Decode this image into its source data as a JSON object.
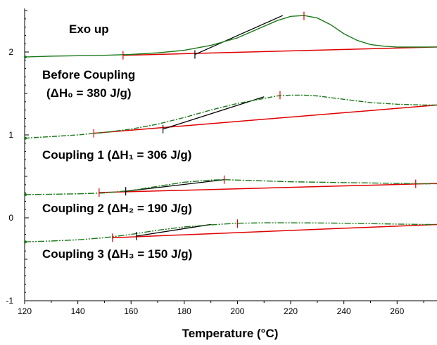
{
  "chart_data": {
    "type": "line",
    "title": "",
    "xlabel": "Temperature (°C)",
    "ylabel": "",
    "xlim": [
      120,
      275
    ],
    "ylim": [
      -1,
      2.5
    ],
    "x_ticks": [
      "120",
      "140",
      "160",
      "180",
      "200",
      "220",
      "240",
      "260"
    ],
    "y_ticks": [
      "-1",
      "0",
      "1",
      "2"
    ],
    "annotations": {
      "exo": "Exo up",
      "before_title": "Before Coupling",
      "before_dh": "(ΔH₀ = 380 J/g)",
      "c1": "Coupling 1 (ΔH₁ = 306 J/g)",
      "c2": "Coupling 2 (ΔH₂ = 190 J/g)",
      "c3": "Coupling 3 (ΔH₃ = 150 J/g)"
    },
    "colors": {
      "curve": "#1a7a1a",
      "baseline": "#e00000",
      "tangent": "#000000"
    },
    "series": [
      {
        "x": [
          120,
          130,
          140,
          150,
          160,
          170,
          180,
          190,
          200,
          210,
          215,
          220,
          225,
          230,
          235,
          240,
          245,
          250,
          255,
          260,
          265,
          270,
          275
        ],
        "y": [
          1.94,
          1.95,
          1.955,
          1.96,
          1.97,
          1.99,
          2.02,
          2.08,
          2.17,
          2.31,
          2.38,
          2.43,
          2.44,
          2.41,
          2.33,
          2.22,
          2.14,
          2.09,
          2.07,
          2.06,
          2.06,
          2.06,
          2.06
        ],
        "baseline": {
          "x": [
            157,
            275
          ],
          "y": [
            1.96,
            2.06
          ]
        },
        "tangent": {
          "x": [
            184,
            217
          ],
          "y": [
            1.97,
            2.44
          ]
        },
        "markers": {
          "red_x": [
            157,
            225
          ],
          "red_y": [
            1.96,
            2.435
          ],
          "black_x": [
            184
          ],
          "black_y": [
            1.97
          ]
        }
      },
      {
        "x": [
          120,
          125,
          130,
          140,
          150,
          160,
          170,
          180,
          190,
          200,
          210,
          215,
          220,
          225,
          230,
          240,
          250,
          260,
          270,
          275
        ],
        "y": [
          0.96,
          0.97,
          0.98,
          1.0,
          1.03,
          1.07,
          1.13,
          1.21,
          1.3,
          1.38,
          1.44,
          1.47,
          1.48,
          1.48,
          1.47,
          1.43,
          1.39,
          1.37,
          1.36,
          1.36
        ],
        "baseline": {
          "x": [
            146,
            275
          ],
          "y": [
            1.02,
            1.36
          ]
        },
        "tangent": {
          "x": [
            172,
            210
          ],
          "y": [
            1.07,
            1.46
          ]
        },
        "markers": {
          "red_x": [
            146,
            216
          ],
          "red_y": [
            1.02,
            1.48
          ],
          "black_x": [
            172
          ],
          "black_y": [
            1.07
          ]
        }
      },
      {
        "x": [
          120,
          130,
          140,
          150,
          160,
          170,
          180,
          190,
          195,
          200,
          210,
          220,
          230,
          240,
          250,
          260,
          270,
          275
        ],
        "y": [
          0.28,
          0.285,
          0.29,
          0.3,
          0.33,
          0.38,
          0.43,
          0.455,
          0.46,
          0.455,
          0.445,
          0.435,
          0.43,
          0.425,
          0.42,
          0.415,
          0.41,
          0.41
        ],
        "baseline": {
          "x": [
            148,
            275
          ],
          "y": [
            0.305,
            0.415
          ]
        },
        "tangent": {
          "x": [
            158,
            195
          ],
          "y": [
            0.32,
            0.46
          ]
        },
        "markers": {
          "red_x": [
            148,
            195,
            267
          ],
          "red_y": [
            0.305,
            0.46,
            0.41
          ],
          "black_x": [
            158
          ],
          "black_y": [
            0.32
          ]
        }
      },
      {
        "x": [
          120,
          130,
          140,
          150,
          160,
          170,
          180,
          190,
          200,
          210,
          220,
          230,
          240,
          250,
          260,
          270,
          275
        ],
        "y": [
          -0.29,
          -0.28,
          -0.265,
          -0.24,
          -0.2,
          -0.15,
          -0.11,
          -0.085,
          -0.065,
          -0.06,
          -0.06,
          -0.062,
          -0.065,
          -0.07,
          -0.075,
          -0.08,
          -0.08
        ],
        "baseline": {
          "x": [
            153,
            275
          ],
          "y": [
            -0.24,
            -0.08
          ]
        },
        "tangent": {
          "x": [
            162,
            190
          ],
          "y": [
            -0.22,
            -0.08
          ]
        },
        "markers": {
          "red_x": [
            153,
            200
          ],
          "red_y": [
            -0.24,
            -0.07
          ],
          "black_x": [
            162
          ],
          "black_y": [
            -0.22
          ]
        }
      }
    ]
  }
}
